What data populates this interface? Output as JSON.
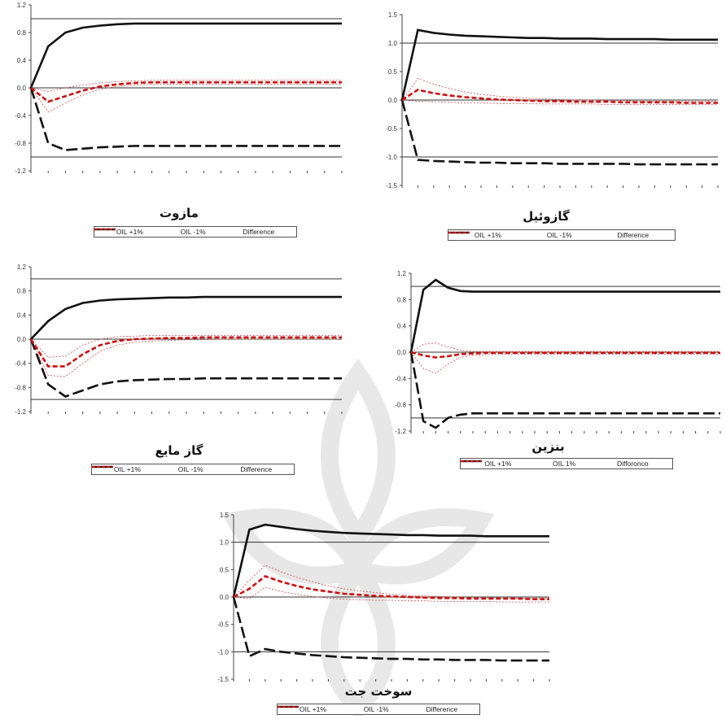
{
  "chart_data": [
    {
      "type": "line",
      "title": "مازوت",
      "ylim": [
        -1.2,
        1.2
      ],
      "yticks": [
        "1.2",
        "0.8",
        "0.4",
        "0.0",
        "-0.4",
        "-0.8",
        "-1.2"
      ],
      "ref_lines": [
        1.0,
        0.0,
        -1.0
      ],
      "x": [
        0,
        1,
        2,
        3,
        4,
        5,
        6,
        7,
        8,
        9,
        10,
        11,
        12,
        13,
        14,
        15,
        16,
        17,
        18
      ],
      "series": [
        {
          "name": "OIL +1%",
          "style": "solid-thick",
          "values": [
            0,
            0.6,
            0.8,
            0.87,
            0.9,
            0.92,
            0.93,
            0.93,
            0.93,
            0.93,
            0.93,
            0.93,
            0.93,
            0.93,
            0.93,
            0.93,
            0.93,
            0.93,
            0.93
          ]
        },
        {
          "name": "OIL -1%",
          "style": "dash-thick",
          "values": [
            0,
            -0.8,
            -0.9,
            -0.88,
            -0.86,
            -0.85,
            -0.84,
            -0.84,
            -0.84,
            -0.84,
            -0.84,
            -0.84,
            -0.84,
            -0.84,
            -0.84,
            -0.84,
            -0.84,
            -0.84,
            -0.84
          ]
        },
        {
          "name": "Difference",
          "style": "red-dash",
          "values": [
            0,
            -0.2,
            -0.12,
            -0.04,
            0.02,
            0.05,
            0.07,
            0.08,
            0.08,
            0.08,
            0.08,
            0.08,
            0.08,
            0.08,
            0.08,
            0.08,
            0.08,
            0.08,
            0.08
          ]
        },
        {
          "band": true,
          "values": [
            0,
            -0.35,
            -0.22,
            -0.1,
            -0.02,
            0.02,
            0.04,
            0.05,
            0.05,
            0.05,
            0.05,
            0.05,
            0.05,
            0.05,
            0.05,
            0.05,
            0.05,
            0.05,
            0.05
          ]
        },
        {
          "band": true,
          "values": [
            0,
            -0.05,
            0.0,
            0.04,
            0.07,
            0.09,
            0.1,
            0.11,
            0.11,
            0.11,
            0.11,
            0.11,
            0.11,
            0.11,
            0.11,
            0.11,
            0.11,
            0.11,
            0.11
          ]
        }
      ],
      "legend": [
        "OIL +1%",
        "OIL -1%",
        "Difference"
      ]
    },
    {
      "type": "line",
      "title": "گازوئیل",
      "ylim": [
        -1.5,
        1.5
      ],
      "yticks": [
        "1.5",
        "1.0",
        "0.5",
        "0.0",
        "-0.5",
        "-1.0",
        "-1.5"
      ],
      "ref_lines": [
        1.0,
        0.0,
        -1.0
      ],
      "x": [
        0,
        1,
        2,
        3,
        4,
        5,
        6,
        7,
        8,
        9,
        10,
        11,
        12,
        13,
        14,
        15,
        16,
        17,
        18,
        19,
        20
      ],
      "series": [
        {
          "name": "OIL +1%",
          "style": "solid-thick",
          "values": [
            0,
            1.23,
            1.18,
            1.15,
            1.13,
            1.12,
            1.11,
            1.1,
            1.09,
            1.09,
            1.08,
            1.08,
            1.08,
            1.07,
            1.07,
            1.07,
            1.07,
            1.06,
            1.06,
            1.06,
            1.06
          ]
        },
        {
          "name": "OIL -1%",
          "style": "dash-thick",
          "values": [
            0,
            -1.05,
            -1.07,
            -1.08,
            -1.09,
            -1.1,
            -1.1,
            -1.11,
            -1.11,
            -1.11,
            -1.12,
            -1.12,
            -1.12,
            -1.12,
            -1.12,
            -1.13,
            -1.13,
            -1.13,
            -1.13,
            -1.13,
            -1.13
          ]
        },
        {
          "name": "Difference",
          "style": "red-dash",
          "values": [
            0,
            0.18,
            0.12,
            0.08,
            0.05,
            0.03,
            0.01,
            0.0,
            -0.01,
            -0.02,
            -0.02,
            -0.03,
            -0.03,
            -0.03,
            -0.04,
            -0.04,
            -0.04,
            -0.04,
            -0.05,
            -0.05,
            -0.05
          ]
        },
        {
          "band": true,
          "values": [
            0,
            0.38,
            0.28,
            0.2,
            0.14,
            0.1,
            0.07,
            0.05,
            0.03,
            0.02,
            0.01,
            0.0,
            0.0,
            -0.01,
            -0.01,
            -0.02,
            -0.02,
            -0.02,
            -0.02,
            -0.02,
            -0.02
          ]
        },
        {
          "band": true,
          "values": [
            0,
            -0.02,
            -0.03,
            -0.04,
            -0.05,
            -0.05,
            -0.06,
            -0.06,
            -0.06,
            -0.07,
            -0.07,
            -0.07,
            -0.07,
            -0.08,
            -0.08,
            -0.08,
            -0.08,
            -0.08,
            -0.08,
            -0.08,
            -0.08
          ]
        }
      ],
      "legend": [
        "OIL +1%",
        "OIL -1%",
        "Difference"
      ]
    },
    {
      "type": "line",
      "title": "گاز مایع",
      "ylim": [
        -1.2,
        1.2
      ],
      "yticks": [
        "1.2",
        "0.8",
        "0.4",
        "0.0",
        "-0.4",
        "-0.8",
        "-1.2"
      ],
      "ref_lines": [
        1.0,
        0.0,
        -1.0
      ],
      "x": [
        0,
        1,
        2,
        3,
        4,
        5,
        6,
        7,
        8,
        9,
        10,
        11,
        12,
        13,
        14,
        15,
        16,
        17,
        18
      ],
      "series": [
        {
          "name": "OIL +1%",
          "style": "solid-thick",
          "values": [
            0,
            0.3,
            0.5,
            0.6,
            0.64,
            0.66,
            0.67,
            0.68,
            0.69,
            0.69,
            0.7,
            0.7,
            0.7,
            0.7,
            0.7,
            0.7,
            0.7,
            0.7,
            0.7
          ]
        },
        {
          "name": "OIL -1%",
          "style": "dash-thick",
          "values": [
            0,
            -0.75,
            -0.95,
            -0.85,
            -0.75,
            -0.7,
            -0.68,
            -0.67,
            -0.66,
            -0.66,
            -0.65,
            -0.65,
            -0.65,
            -0.65,
            -0.65,
            -0.65,
            -0.65,
            -0.65,
            -0.65
          ]
        },
        {
          "name": "Difference",
          "style": "red-dash",
          "values": [
            0,
            -0.45,
            -0.45,
            -0.25,
            -0.1,
            -0.03,
            0.0,
            0.01,
            0.02,
            0.02,
            0.03,
            0.03,
            0.03,
            0.03,
            0.03,
            0.03,
            0.03,
            0.03,
            0.03
          ]
        },
        {
          "band": true,
          "values": [
            0,
            -0.6,
            -0.62,
            -0.4,
            -0.2,
            -0.1,
            -0.05,
            -0.03,
            -0.02,
            -0.01,
            -0.01,
            0.0,
            0.0,
            0.0,
            0.0,
            0.0,
            0.0,
            0.0,
            0.0
          ]
        },
        {
          "band": true,
          "values": [
            0,
            -0.3,
            -0.28,
            -0.1,
            0.0,
            0.04,
            0.05,
            0.06,
            0.06,
            0.06,
            0.06,
            0.06,
            0.06,
            0.06,
            0.06,
            0.06,
            0.06,
            0.06,
            0.06
          ]
        }
      ],
      "legend": [
        "OIL +1%",
        "OIL -1%",
        "Difference"
      ]
    },
    {
      "type": "line",
      "title": "بنزین",
      "ylim": [
        -1.2,
        1.2
      ],
      "yticks": [
        "1.2",
        "0.8",
        "0.4",
        "0.0",
        "-0.4",
        "-0.8",
        "-1.2"
      ],
      "ref_lines": [
        1.0,
        0.0,
        -1.0
      ],
      "x": [
        0,
        1,
        2,
        3,
        4,
        5,
        6,
        7,
        8,
        9,
        10,
        11,
        12,
        13,
        14,
        15,
        16,
        17,
        18,
        19,
        20,
        21,
        22,
        23,
        24,
        25
      ],
      "series": [
        {
          "name": "OIL +1%",
          "style": "solid-thick",
          "values": [
            0,
            0.95,
            1.1,
            0.98,
            0.93,
            0.92,
            0.92,
            0.92,
            0.92,
            0.92,
            0.92,
            0.92,
            0.92,
            0.92,
            0.92,
            0.92,
            0.92,
            0.92,
            0.92,
            0.92,
            0.92,
            0.92,
            0.92,
            0.92,
            0.92,
            0.92
          ]
        },
        {
          "name": "OIL -1%",
          "style": "dash-thick",
          "values": [
            0,
            -1.05,
            -1.15,
            -1.0,
            -0.95,
            -0.93,
            -0.93,
            -0.93,
            -0.93,
            -0.93,
            -0.93,
            -0.93,
            -0.93,
            -0.93,
            -0.93,
            -0.93,
            -0.93,
            -0.93,
            -0.93,
            -0.93,
            -0.93,
            -0.93,
            -0.93,
            -0.93,
            -0.93,
            -0.93
          ]
        },
        {
          "name": "Difference",
          "style": "red-dash",
          "values": [
            0,
            -0.05,
            -0.08,
            -0.06,
            -0.03,
            -0.02,
            -0.01,
            -0.01,
            -0.01,
            -0.01,
            -0.01,
            -0.01,
            -0.01,
            -0.01,
            -0.01,
            -0.01,
            -0.01,
            -0.01,
            -0.01,
            -0.01,
            -0.01,
            -0.01,
            -0.01,
            -0.01,
            -0.01,
            -0.01
          ]
        },
        {
          "band": true,
          "values": [
            0,
            -0.25,
            -0.32,
            -0.18,
            -0.08,
            -0.05,
            -0.04,
            -0.03,
            -0.03,
            -0.03,
            -0.03,
            -0.03,
            -0.03,
            -0.03,
            -0.03,
            -0.03,
            -0.03,
            -0.03,
            -0.03,
            -0.03,
            -0.03,
            -0.03,
            -0.03,
            -0.03,
            -0.03,
            -0.03
          ]
        },
        {
          "band": true,
          "values": [
            0,
            0.12,
            0.14,
            0.08,
            0.03,
            0.01,
            0.01,
            0.01,
            0.01,
            0.01,
            0.01,
            0.01,
            0.01,
            0.01,
            0.01,
            0.01,
            0.01,
            0.01,
            0.01,
            0.01,
            0.01,
            0.01,
            0.01,
            0.01,
            0.01,
            0.01
          ]
        }
      ],
      "legend": [
        "OIL +1%",
        "OIL  1%",
        "Difforonco"
      ]
    },
    {
      "type": "line",
      "title": "سوخت جت",
      "ylim": [
        -1.5,
        1.5
      ],
      "yticks": [
        "1.5",
        "1.0",
        "0.5",
        "0.0",
        "-0.5",
        "-1.0",
        "-1.5"
      ],
      "ref_lines": [
        1.0,
        0.0,
        -1.0
      ],
      "x": [
        0,
        1,
        2,
        3,
        4,
        5,
        6,
        7,
        8,
        9,
        10,
        11,
        12,
        13,
        14,
        15,
        16,
        17,
        18,
        19,
        20
      ],
      "series": [
        {
          "name": "OIL +1%",
          "style": "solid-thick",
          "values": [
            0,
            1.23,
            1.32,
            1.28,
            1.24,
            1.21,
            1.19,
            1.17,
            1.16,
            1.15,
            1.14,
            1.13,
            1.13,
            1.12,
            1.12,
            1.12,
            1.11,
            1.11,
            1.11,
            1.11,
            1.11
          ]
        },
        {
          "name": "OIL -1%",
          "style": "dash-thick",
          "values": [
            0,
            -1.08,
            -0.95,
            -1.0,
            -1.03,
            -1.06,
            -1.08,
            -1.1,
            -1.11,
            -1.12,
            -1.13,
            -1.13,
            -1.14,
            -1.14,
            -1.15,
            -1.15,
            -1.15,
            -1.16,
            -1.16,
            -1.16,
            -1.16
          ]
        },
        {
          "name": "Difference",
          "style": "red-dash",
          "values": [
            0,
            0.15,
            0.38,
            0.28,
            0.2,
            0.14,
            0.1,
            0.06,
            0.04,
            0.02,
            0.01,
            0.0,
            -0.01,
            -0.02,
            -0.02,
            -0.03,
            -0.03,
            -0.03,
            -0.03,
            -0.04,
            -0.04
          ]
        },
        {
          "band": true,
          "values": [
            0,
            0.3,
            0.58,
            0.46,
            0.36,
            0.28,
            0.2,
            0.15,
            0.11,
            0.08,
            0.05,
            0.03,
            0.02,
            0.01,
            0.0,
            -0.01,
            -0.01,
            -0.02,
            -0.02,
            -0.02,
            -0.02
          ]
        },
        {
          "band": true,
          "values": [
            0,
            -0.03,
            0.18,
            0.1,
            0.05,
            0.01,
            -0.02,
            -0.04,
            -0.05,
            -0.06,
            -0.06,
            -0.07,
            -0.07,
            -0.08,
            -0.08,
            -0.08,
            -0.08,
            -0.09,
            -0.09,
            -0.09,
            -0.09
          ]
        }
      ],
      "legend": [
        "OIL +1%",
        "OIL -1%",
        "Difference"
      ]
    }
  ]
}
